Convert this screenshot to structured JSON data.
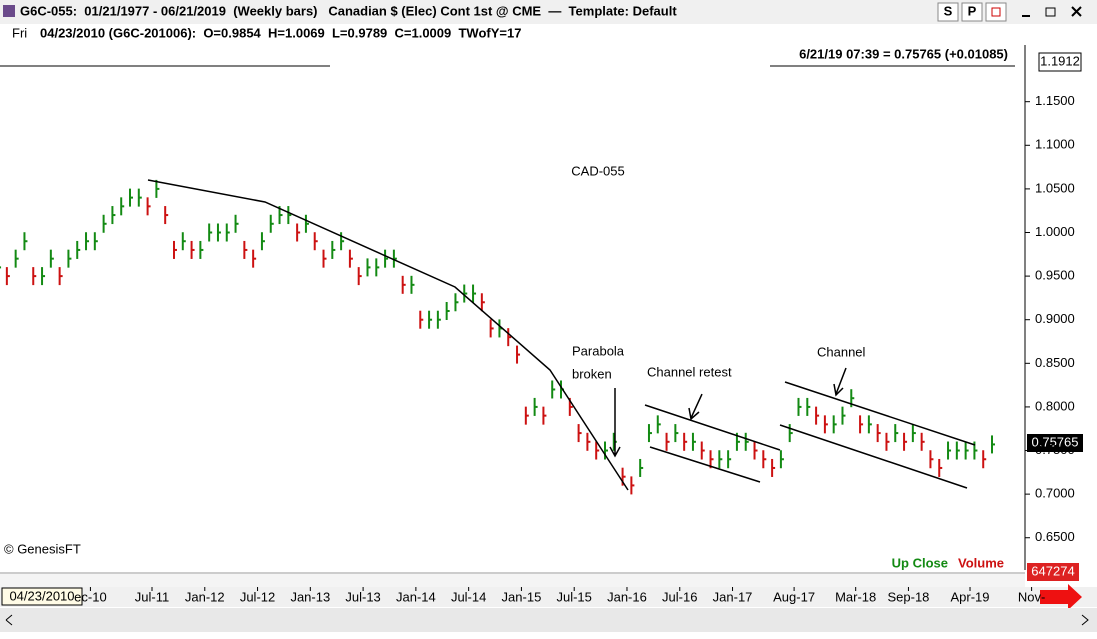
{
  "ui": {
    "title": "G6C-055:  01/21/1977 - 06/21/2019  (Weekly bars)   Canadian $ (Elec) Cont 1st @ CME  —  Template: Default",
    "btn_s": "S",
    "btn_p": "P",
    "day": "Fri",
    "info": "04/23/2010 (G6C-201006):  O=0.9854  H=1.0069  L=0.9789  C=1.0009  TWofY=17",
    "quote": "6/21/19 07:39 = 0.75765 (+0.01085)",
    "top_price": "1.1912",
    "last_price": "0.75765",
    "volume_value": "647274",
    "copyright": "© GenesisFT",
    "up_close": "Up Close",
    "volume": "Volume",
    "cursor_date": "04/23/2010"
  },
  "chart_data": {
    "type": "bar",
    "title": "CAD-055",
    "annotations": [
      "Parabola",
      "broken",
      "Channel retest",
      "Channel"
    ],
    "x": [
      0.5,
      1.5,
      2.5,
      3.5,
      4.5,
      5.5,
      6.5,
      7.5,
      8.5,
      9.5,
      10.5,
      11.5,
      12.5,
      13.5,
      14.5,
      15.5,
      16.5,
      17.5,
      18.5,
      19.5,
      20.5,
      21.5,
      22.5,
      23.5,
      24.5,
      25.5,
      26.5,
      27.5,
      28.5,
      29.5,
      30.5,
      31.5,
      32.5,
      33.5,
      34.5,
      35.5,
      36.5,
      37.5,
      38.5,
      39.5,
      40.5,
      41.5,
      42.5,
      43.5,
      44.5,
      45.5,
      46.5,
      47.5,
      48.5,
      49.5,
      50.5,
      51.5,
      52.5,
      53.5,
      54.5,
      55.5,
      56.5,
      57.5,
      58.5,
      59.5,
      60.5,
      61.5,
      62.5,
      63.5,
      64.5,
      65.5,
      66.5,
      67.5,
      68.5,
      69.5,
      70.5,
      71.5,
      72.5,
      73.5,
      74.5,
      75.5,
      76.5,
      77.5,
      78.5,
      79.5,
      80.5,
      81.5,
      82.5,
      83.5,
      84.5,
      85.5,
      86.5,
      87.5,
      88.5,
      89.5,
      90.5,
      91.5,
      92.5,
      93.5,
      94.5,
      95.5,
      96.5,
      97.5,
      98.5,
      99.5,
      100.5,
      101.5,
      102.5,
      103.5,
      104.5,
      105.5,
      106.5,
      107.5,
      108.5,
      109.5,
      110.5,
      111.5,
      112.5,
      113.5
    ],
    "values": [
      0.96,
      0.95,
      0.97,
      0.99,
      0.95,
      0.95,
      0.97,
      0.95,
      0.97,
      0.98,
      0.99,
      0.99,
      1.01,
      1.02,
      1.03,
      1.04,
      1.04,
      1.03,
      1.05,
      1.02,
      0.98,
      0.99,
      0.98,
      0.98,
      1.0,
      1.0,
      1.0,
      1.01,
      0.98,
      0.97,
      0.99,
      1.01,
      1.02,
      1.02,
      1.0,
      1.01,
      0.99,
      0.97,
      0.98,
      0.99,
      0.97,
      0.95,
      0.96,
      0.96,
      0.97,
      0.97,
      0.94,
      0.94,
      0.9,
      0.9,
      0.9,
      0.91,
      0.92,
      0.93,
      0.93,
      0.92,
      0.89,
      0.89,
      0.88,
      0.86,
      0.79,
      0.8,
      0.79,
      0.82,
      0.82,
      0.8,
      0.77,
      0.76,
      0.75,
      0.75,
      0.76,
      0.72,
      0.71,
      0.73,
      0.77,
      0.78,
      0.76,
      0.77,
      0.76,
      0.76,
      0.75,
      0.74,
      0.74,
      0.74,
      0.76,
      0.76,
      0.75,
      0.74,
      0.73,
      0.74,
      0.77,
      0.8,
      0.8,
      0.79,
      0.78,
      0.78,
      0.79,
      0.81,
      0.78,
      0.78,
      0.77,
      0.76,
      0.77,
      0.76,
      0.77,
      0.76,
      0.74,
      0.73,
      0.75,
      0.75,
      0.75,
      0.75,
      0.74,
      0.757
    ],
    "up_color": "#138a13",
    "down_color": "#cc1111",
    "xlim": [
      0.72,
      117.25
    ],
    "xticks": [
      {
        "value": 11,
        "label": "ec-10"
      },
      {
        "value": 18,
        "label": "Jul-11"
      },
      {
        "value": 24,
        "label": "Jan-12"
      },
      {
        "value": 30,
        "label": "Jul-12"
      },
      {
        "value": 36,
        "label": "Jan-13"
      },
      {
        "value": 42,
        "label": "Jul-13"
      },
      {
        "value": 48,
        "label": "Jan-14"
      },
      {
        "value": 54,
        "label": "Jul-14"
      },
      {
        "value": 60,
        "label": "Jan-15"
      },
      {
        "value": 66,
        "label": "Jul-15"
      },
      {
        "value": 72,
        "label": "Jan-16"
      },
      {
        "value": 78,
        "label": "Jul-16"
      },
      {
        "value": 84,
        "label": "Jan-17"
      },
      {
        "value": 91,
        "label": "Aug-17"
      },
      {
        "value": 98,
        "label": "Mar-18"
      },
      {
        "value": 104,
        "label": "Sep-18"
      },
      {
        "value": 111,
        "label": "Apr-19"
      },
      {
        "value": 118,
        "label": "Nov-"
      }
    ],
    "ylim": [
      0.613,
      1.215
    ],
    "yticks": [
      {
        "value": 0.65,
        "label": "0.6500"
      },
      {
        "value": 0.7,
        "label": "0.7000"
      },
      {
        "value": 0.75,
        "label": "0.7500"
      },
      {
        "value": 0.8,
        "label": "0.8000"
      },
      {
        "value": 0.85,
        "label": "0.8500"
      },
      {
        "value": 0.9,
        "label": "0.9000"
      },
      {
        "value": 0.95,
        "label": "0.9500"
      },
      {
        "value": 1.0,
        "label": "1.0000"
      },
      {
        "value": 1.05,
        "label": "1.0500"
      },
      {
        "value": 1.1,
        "label": "1.1000"
      },
      {
        "value": 1.15,
        "label": "1.1500"
      }
    ]
  }
}
